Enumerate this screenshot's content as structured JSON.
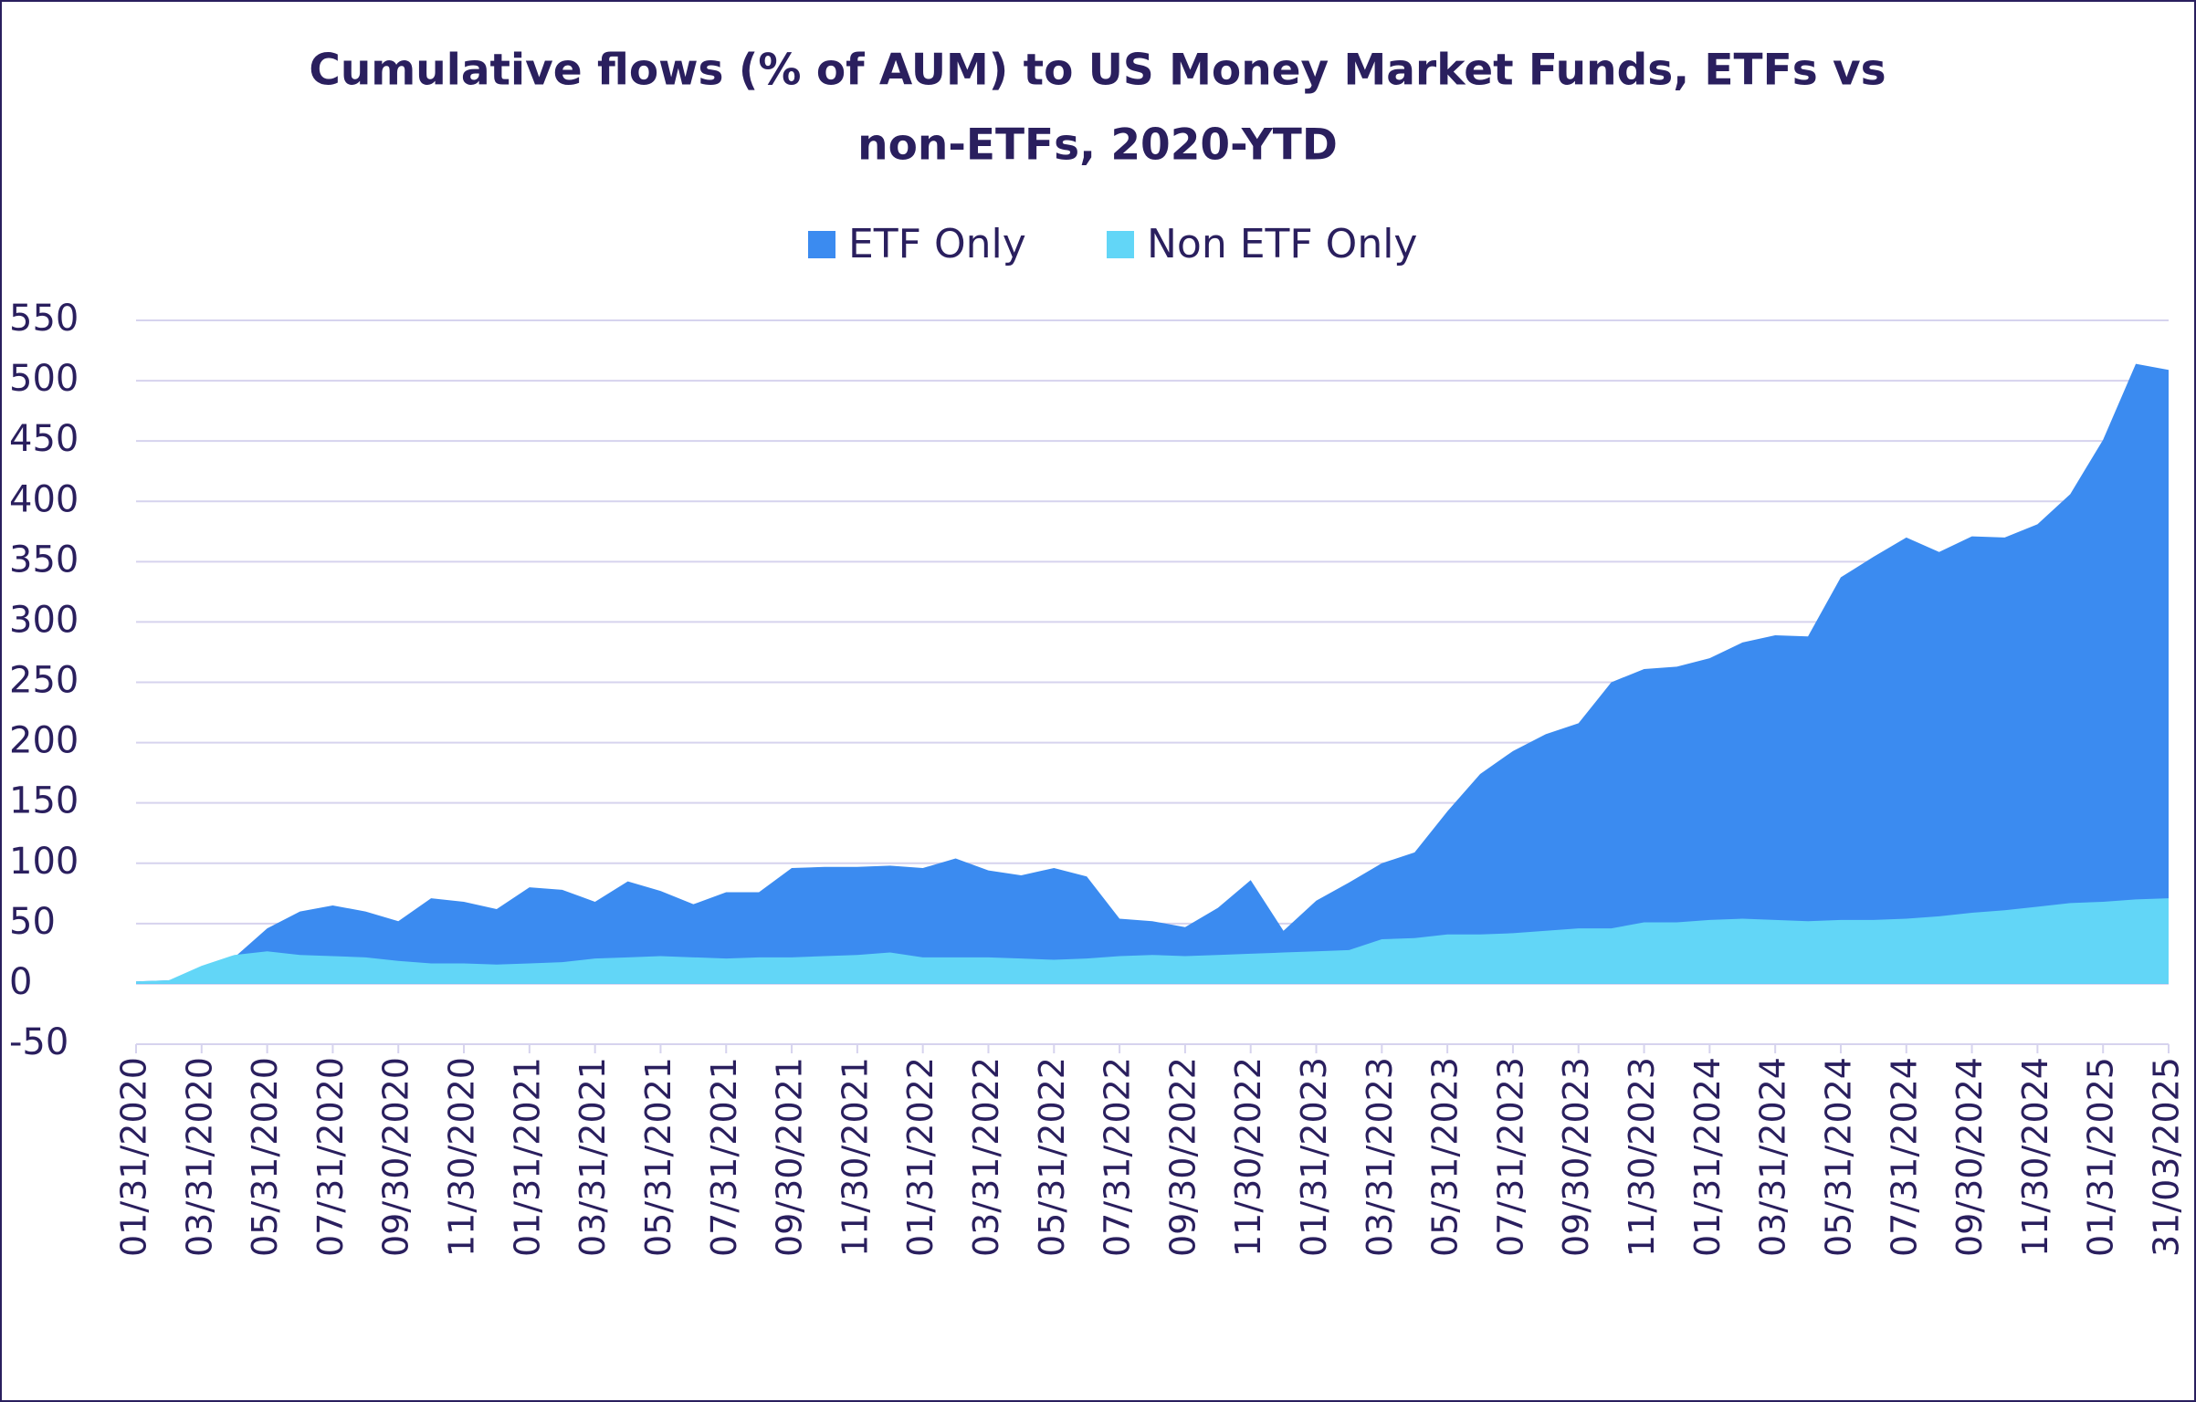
{
  "chart_data": {
    "type": "area",
    "title": [
      "Cumulative flows (% of AUM) to US Money Market Funds, ETFs vs",
      "non-ETFs, 2020-YTD"
    ],
    "categories": [
      "01/31/2020",
      null,
      "03/31/2020",
      null,
      "05/31/2020",
      null,
      "07/31/2020",
      null,
      "09/30/2020",
      null,
      "11/30/2020",
      null,
      "01/31/2021",
      null,
      "03/31/2021",
      null,
      "05/31/2021",
      null,
      "07/31/2021",
      null,
      "09/30/2021",
      null,
      "11/30/2021",
      null,
      "01/31/2022",
      null,
      "03/31/2022",
      null,
      "05/31/2022",
      null,
      "07/31/2022",
      null,
      "09/30/2022",
      null,
      "11/30/2022",
      null,
      "01/31/2023",
      null,
      "03/31/2023",
      null,
      "05/31/2023",
      null,
      "07/31/2023",
      null,
      "09/30/2023",
      null,
      "11/30/2023",
      null,
      "01/31/2024",
      null,
      "03/31/2024",
      null,
      "05/31/2024",
      null,
      "07/31/2024",
      null,
      "09/30/2024",
      null,
      "11/30/2024",
      null,
      "01/31/2025",
      null,
      "31/03/2025"
    ],
    "series": [
      {
        "name": "ETF Only",
        "color": "#3b8bf0",
        "values": [
          2,
          3,
          10,
          22,
          46,
          60,
          65,
          60,
          52,
          71,
          68,
          62,
          80,
          78,
          68,
          85,
          77,
          66,
          76,
          76,
          96,
          97,
          97,
          98,
          96,
          104,
          94,
          90,
          96,
          89,
          54,
          52,
          47,
          63,
          86,
          44,
          69,
          84,
          100,
          109,
          143,
          174,
          193,
          207,
          216,
          250,
          261,
          263,
          270,
          283,
          289,
          288,
          337,
          354,
          370,
          358,
          371,
          370,
          381,
          406,
          451,
          514,
          509
        ]
      },
      {
        "name": "Non ETF Only",
        "color": "#62d6f7",
        "values": [
          2,
          3,
          15,
          24,
          27,
          24,
          23,
          22,
          19,
          17,
          17,
          16,
          17,
          18,
          21,
          22,
          23,
          22,
          21,
          22,
          22,
          23,
          24,
          26,
          22,
          22,
          22,
          21,
          20,
          21,
          23,
          24,
          23,
          24,
          25,
          26,
          27,
          28,
          37,
          38,
          41,
          41,
          42,
          44,
          46,
          46,
          51,
          51,
          53,
          54,
          53,
          52,
          53,
          53,
          54,
          56,
          59,
          61,
          64,
          67,
          68,
          70,
          71
        ]
      }
    ],
    "ylim": [
      -50,
      550
    ],
    "yticks": [
      -50,
      0,
      50,
      100,
      150,
      200,
      250,
      300,
      350,
      400,
      450,
      500,
      550
    ],
    "grid": true,
    "legend": "top"
  }
}
